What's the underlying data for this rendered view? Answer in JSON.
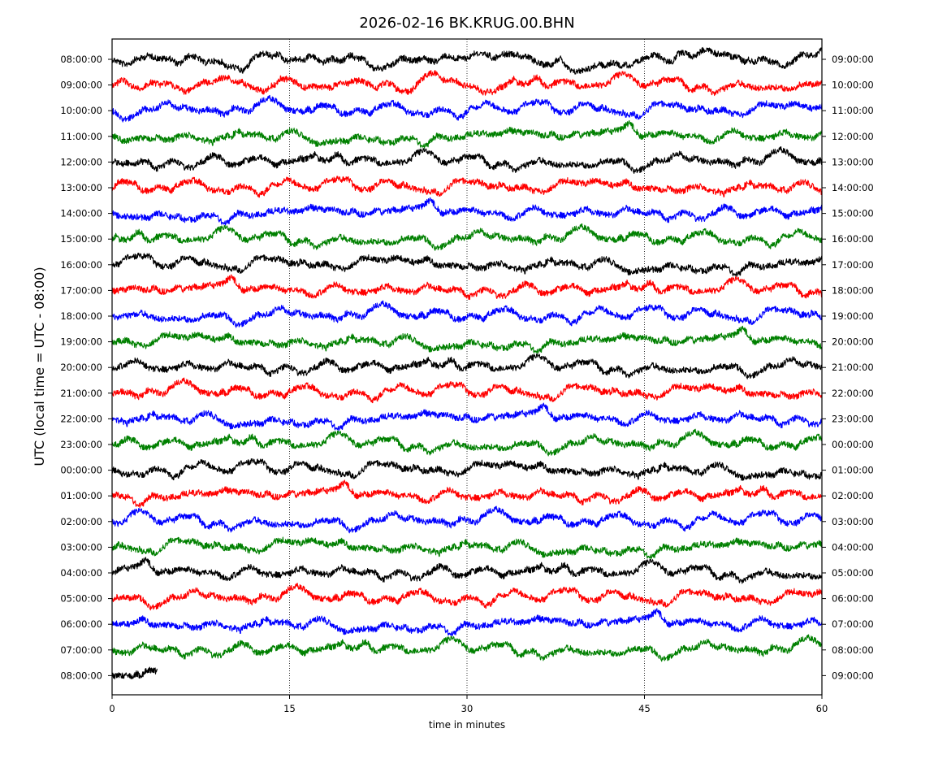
{
  "chart_data": {
    "type": "line",
    "title": "2026-02-16 BK.KRUG.00.BHN",
    "xlabel": "time in minutes",
    "ylabel": "UTC (local time = UTC - 08:00)",
    "xlim": [
      0,
      60
    ],
    "x_ticks": [
      0,
      15,
      30,
      45,
      60
    ],
    "x_tick_labels": [
      "0",
      "15",
      "30",
      "45",
      "60"
    ],
    "grid": "vertical dotted lines at 15, 30, 45",
    "series_colors": [
      "#000000",
      "#ff0000",
      "#0000ff",
      "#008000"
    ],
    "rows": [
      {
        "left": "08:00:00",
        "right": "09:00:00",
        "color": "#000000",
        "duration_min": 60
      },
      {
        "left": "09:00:00",
        "right": "10:00:00",
        "color": "#ff0000",
        "duration_min": 60
      },
      {
        "left": "10:00:00",
        "right": "11:00:00",
        "color": "#0000ff",
        "duration_min": 60
      },
      {
        "left": "11:00:00",
        "right": "12:00:00",
        "color": "#008000",
        "duration_min": 60
      },
      {
        "left": "12:00:00",
        "right": "13:00:00",
        "color": "#000000",
        "duration_min": 60
      },
      {
        "left": "13:00:00",
        "right": "14:00:00",
        "color": "#ff0000",
        "duration_min": 60
      },
      {
        "left": "14:00:00",
        "right": "15:00:00",
        "color": "#0000ff",
        "duration_min": 60
      },
      {
        "left": "15:00:00",
        "right": "16:00:00",
        "color": "#008000",
        "duration_min": 60
      },
      {
        "left": "16:00:00",
        "right": "17:00:00",
        "color": "#000000",
        "duration_min": 60
      },
      {
        "left": "17:00:00",
        "right": "18:00:00",
        "color": "#ff0000",
        "duration_min": 60
      },
      {
        "left": "18:00:00",
        "right": "19:00:00",
        "color": "#0000ff",
        "duration_min": 60
      },
      {
        "left": "19:00:00",
        "right": "20:00:00",
        "color": "#008000",
        "duration_min": 60
      },
      {
        "left": "20:00:00",
        "right": "21:00:00",
        "color": "#000000",
        "duration_min": 60
      },
      {
        "left": "21:00:00",
        "right": "22:00:00",
        "color": "#ff0000",
        "duration_min": 60
      },
      {
        "left": "22:00:00",
        "right": "23:00:00",
        "color": "#0000ff",
        "duration_min": 60
      },
      {
        "left": "23:00:00",
        "right": "00:00:00",
        "color": "#008000",
        "duration_min": 60
      },
      {
        "left": "00:00:00",
        "right": "01:00:00",
        "color": "#000000",
        "duration_min": 60
      },
      {
        "left": "01:00:00",
        "right": "02:00:00",
        "color": "#ff0000",
        "duration_min": 60
      },
      {
        "left": "02:00:00",
        "right": "03:00:00",
        "color": "#0000ff",
        "duration_min": 60
      },
      {
        "left": "03:00:00",
        "right": "04:00:00",
        "color": "#008000",
        "duration_min": 60
      },
      {
        "left": "04:00:00",
        "right": "05:00:00",
        "color": "#000000",
        "duration_min": 60
      },
      {
        "left": "05:00:00",
        "right": "06:00:00",
        "color": "#ff0000",
        "duration_min": 60
      },
      {
        "left": "06:00:00",
        "right": "07:00:00",
        "color": "#0000ff",
        "duration_min": 60
      },
      {
        "left": "07:00:00",
        "right": "08:00:00",
        "color": "#008000",
        "duration_min": 60
      },
      {
        "left": "08:00:00",
        "right": "09:00:00",
        "color": "#000000",
        "duration_min": 3.8
      }
    ]
  }
}
